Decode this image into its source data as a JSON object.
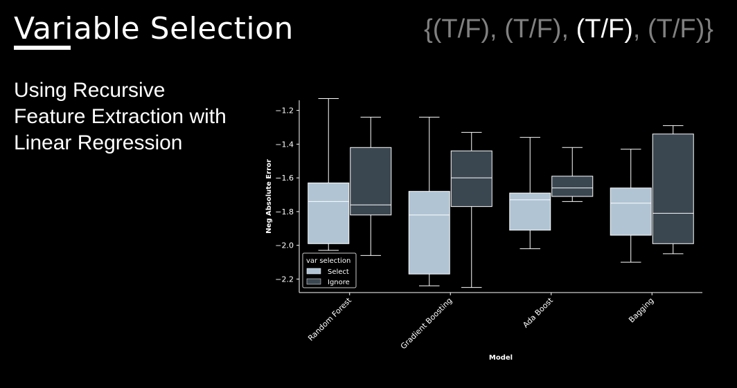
{
  "slide": {
    "title": "Variable Selection",
    "tf_parts": [
      "{(T/F), ",
      "(T/F), ",
      "(T/F)",
      ", (T/F)}"
    ],
    "tf_highlight_index": 2,
    "subtitle": "Using Recursive Feature Extraction with Linear Regression"
  },
  "colors": {
    "background": "#000000",
    "select": "#b0c4d4",
    "ignore": "#3a4650",
    "whisker": "#ffffff",
    "axis_text": "#ffffff",
    "tf_dim": "#808080",
    "tf_highlight": "#ffffff"
  },
  "chart_data": {
    "type": "boxplot",
    "xlabel": "Model",
    "ylabel": "Neg Absolute Error",
    "categories": [
      "Random Forest",
      "Gradient Boosting",
      "Ada Boost",
      "Bagging"
    ],
    "ylim": [
      -2.28,
      -1.14
    ],
    "yticks": [
      -1.2,
      -1.4,
      -1.6,
      -1.8,
      -2.0,
      -2.2
    ],
    "ytick_labels": [
      "−1.2",
      "−1.4",
      "−1.6",
      "−1.8",
      "−2.0",
      "−2.2"
    ],
    "grid": false,
    "legend": {
      "title": "var selection",
      "position": "lower-left"
    },
    "series": [
      {
        "name": "Select",
        "boxes": [
          {
            "whislo": -2.03,
            "q1": -1.99,
            "med": -1.74,
            "q3": -1.63,
            "whishi": -1.13
          },
          {
            "whislo": -2.24,
            "q1": -2.17,
            "med": -1.82,
            "q3": -1.68,
            "whishi": -1.24
          },
          {
            "whislo": -2.02,
            "q1": -1.91,
            "med": -1.73,
            "q3": -1.69,
            "whishi": -1.36
          },
          {
            "whislo": -2.1,
            "q1": -1.94,
            "med": -1.75,
            "q3": -1.66,
            "whishi": -1.43
          }
        ]
      },
      {
        "name": "Ignore",
        "boxes": [
          {
            "whislo": -2.06,
            "q1": -1.82,
            "med": -1.76,
            "q3": -1.42,
            "whishi": -1.24
          },
          {
            "whislo": -2.25,
            "q1": -1.77,
            "med": -1.6,
            "q3": -1.44,
            "whishi": -1.33
          },
          {
            "whislo": -1.74,
            "q1": -1.71,
            "med": -1.66,
            "q3": -1.59,
            "whishi": -1.42
          },
          {
            "whislo": -2.05,
            "q1": -1.99,
            "med": -1.81,
            "q3": -1.34,
            "whishi": -1.29
          }
        ]
      }
    ]
  }
}
